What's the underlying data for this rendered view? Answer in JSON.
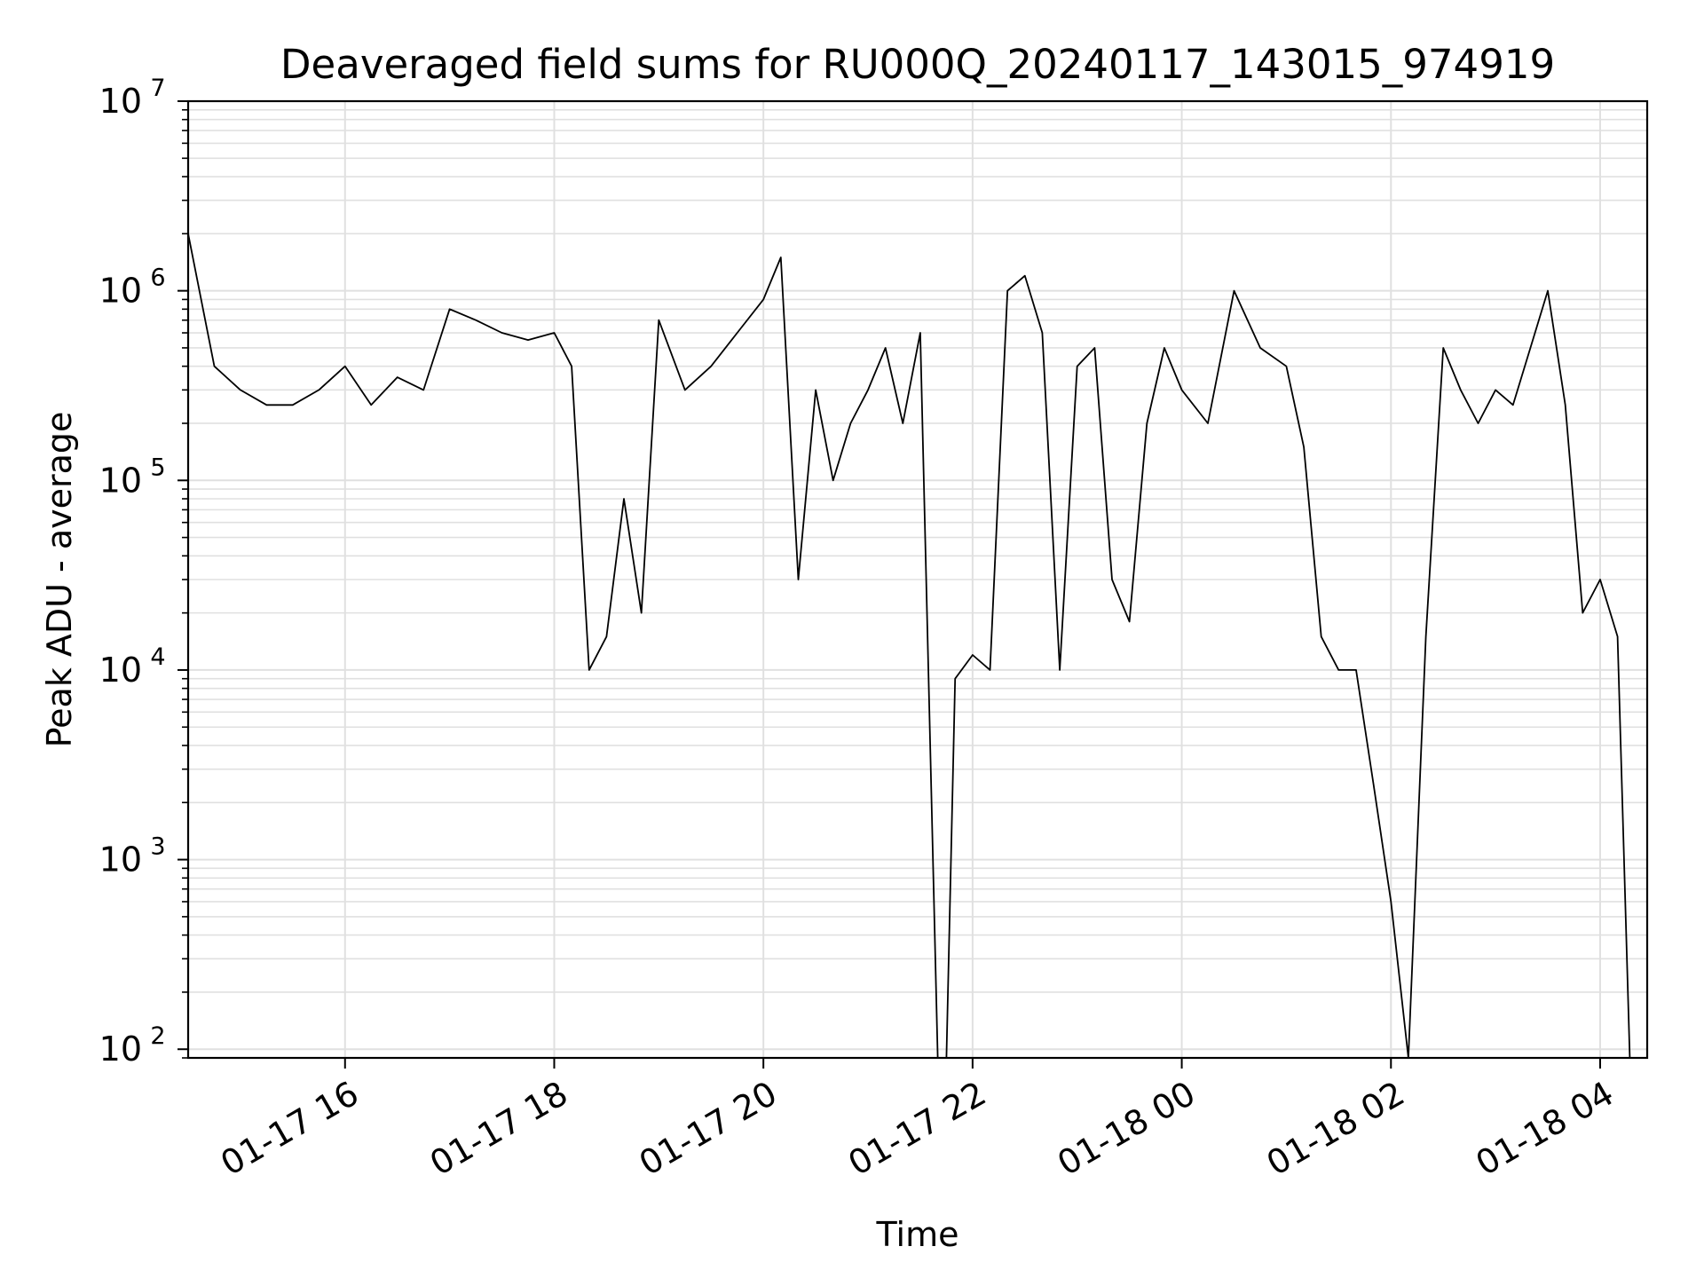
{
  "chart_data": {
    "type": "line",
    "title": "Deaveraged field sums for RU000Q_20240117_143015_974919",
    "xlabel": "Time",
    "ylabel": "Peak ADU - average",
    "yscale": "log",
    "xlim": [
      "2024-01-17T14:30",
      "2024-01-18T04:27"
    ],
    "ylim": [
      90,
      10000000
    ],
    "grid": true,
    "line_color": "#000000",
    "grid_color": "#e0e0e0",
    "x_ticks": [
      {
        "value": "2024-01-17T16:00",
        "label": "01-17 16"
      },
      {
        "value": "2024-01-17T18:00",
        "label": "01-17 18"
      },
      {
        "value": "2024-01-17T20:00",
        "label": "01-17 20"
      },
      {
        "value": "2024-01-17T22:00",
        "label": "01-17 22"
      },
      {
        "value": "2024-01-18T00:00",
        "label": "01-18 00"
      },
      {
        "value": "2024-01-18T02:00",
        "label": "01-18 02"
      },
      {
        "value": "2024-01-18T04:00",
        "label": "01-18 04"
      }
    ],
    "y_ticks": [
      {
        "value": 100,
        "base": "10",
        "exp": "2"
      },
      {
        "value": 1000,
        "base": "10",
        "exp": "3"
      },
      {
        "value": 10000,
        "base": "10",
        "exp": "4"
      },
      {
        "value": 100000,
        "base": "10",
        "exp": "5"
      },
      {
        "value": 1000000,
        "base": "10",
        "exp": "6"
      },
      {
        "value": 10000000,
        "base": "10",
        "exp": "7"
      }
    ],
    "series": [
      {
        "x": [
          "2024-01-17T14:30",
          "2024-01-17T14:45",
          "2024-01-17T15:00",
          "2024-01-17T15:15",
          "2024-01-17T15:30",
          "2024-01-17T15:45",
          "2024-01-17T16:00",
          "2024-01-17T16:15",
          "2024-01-17T16:30",
          "2024-01-17T16:45",
          "2024-01-17T17:00",
          "2024-01-17T17:15",
          "2024-01-17T17:30",
          "2024-01-17T17:45",
          "2024-01-17T18:00",
          "2024-01-17T18:10",
          "2024-01-17T18:20",
          "2024-01-17T18:30",
          "2024-01-17T18:40",
          "2024-01-17T18:50",
          "2024-01-17T19:00",
          "2024-01-17T19:15",
          "2024-01-17T19:30",
          "2024-01-17T19:45",
          "2024-01-17T20:00",
          "2024-01-17T20:10",
          "2024-01-17T20:20",
          "2024-01-17T20:30",
          "2024-01-17T20:40",
          "2024-01-17T20:50",
          "2024-01-17T21:00",
          "2024-01-17T21:10",
          "2024-01-17T21:20",
          "2024-01-17T21:30",
          "2024-01-17T21:40",
          "2024-01-17T21:45",
          "2024-01-17T21:50",
          "2024-01-17T22:00",
          "2024-01-17T22:10",
          "2024-01-17T22:20",
          "2024-01-17T22:30",
          "2024-01-17T22:40",
          "2024-01-17T22:50",
          "2024-01-17T23:00",
          "2024-01-17T23:10",
          "2024-01-17T23:20",
          "2024-01-17T23:30",
          "2024-01-17T23:40",
          "2024-01-17T23:50",
          "2024-01-18T00:00",
          "2024-01-18T00:15",
          "2024-01-18T00:30",
          "2024-01-18T00:45",
          "2024-01-18T01:00",
          "2024-01-18T01:10",
          "2024-01-18T01:20",
          "2024-01-18T01:30",
          "2024-01-18T01:40",
          "2024-01-18T01:50",
          "2024-01-18T02:00",
          "2024-01-18T02:10",
          "2024-01-18T02:20",
          "2024-01-18T02:30",
          "2024-01-18T02:40",
          "2024-01-18T02:50",
          "2024-01-18T03:00",
          "2024-01-18T03:10",
          "2024-01-18T03:20",
          "2024-01-18T03:30",
          "2024-01-18T03:40",
          "2024-01-18T03:50",
          "2024-01-18T04:00",
          "2024-01-18T04:10",
          "2024-01-18T04:17"
        ],
        "y": [
          2000000,
          400000,
          300000,
          250000,
          250000,
          300000,
          400000,
          250000,
          350000,
          300000,
          800000,
          700000,
          600000,
          550000,
          600000,
          400000,
          10000,
          15000,
          80000,
          20000,
          700000,
          300000,
          400000,
          600000,
          900000,
          1500000,
          30000,
          300000,
          100000,
          200000,
          300000,
          500000,
          200000,
          600000,
          90,
          90,
          9000,
          12000,
          10000,
          1000000,
          1200000,
          600000,
          10000,
          400000,
          500000,
          30000,
          18000,
          200000,
          500000,
          300000,
          200000,
          1000000,
          500000,
          400000,
          150000,
          15000,
          10000,
          10000,
          2500,
          600,
          90,
          15000,
          500000,
          300000,
          200000,
          300000,
          250000,
          500000,
          1000000,
          250000,
          20000,
          30000,
          15000,
          90
        ]
      }
    ]
  }
}
